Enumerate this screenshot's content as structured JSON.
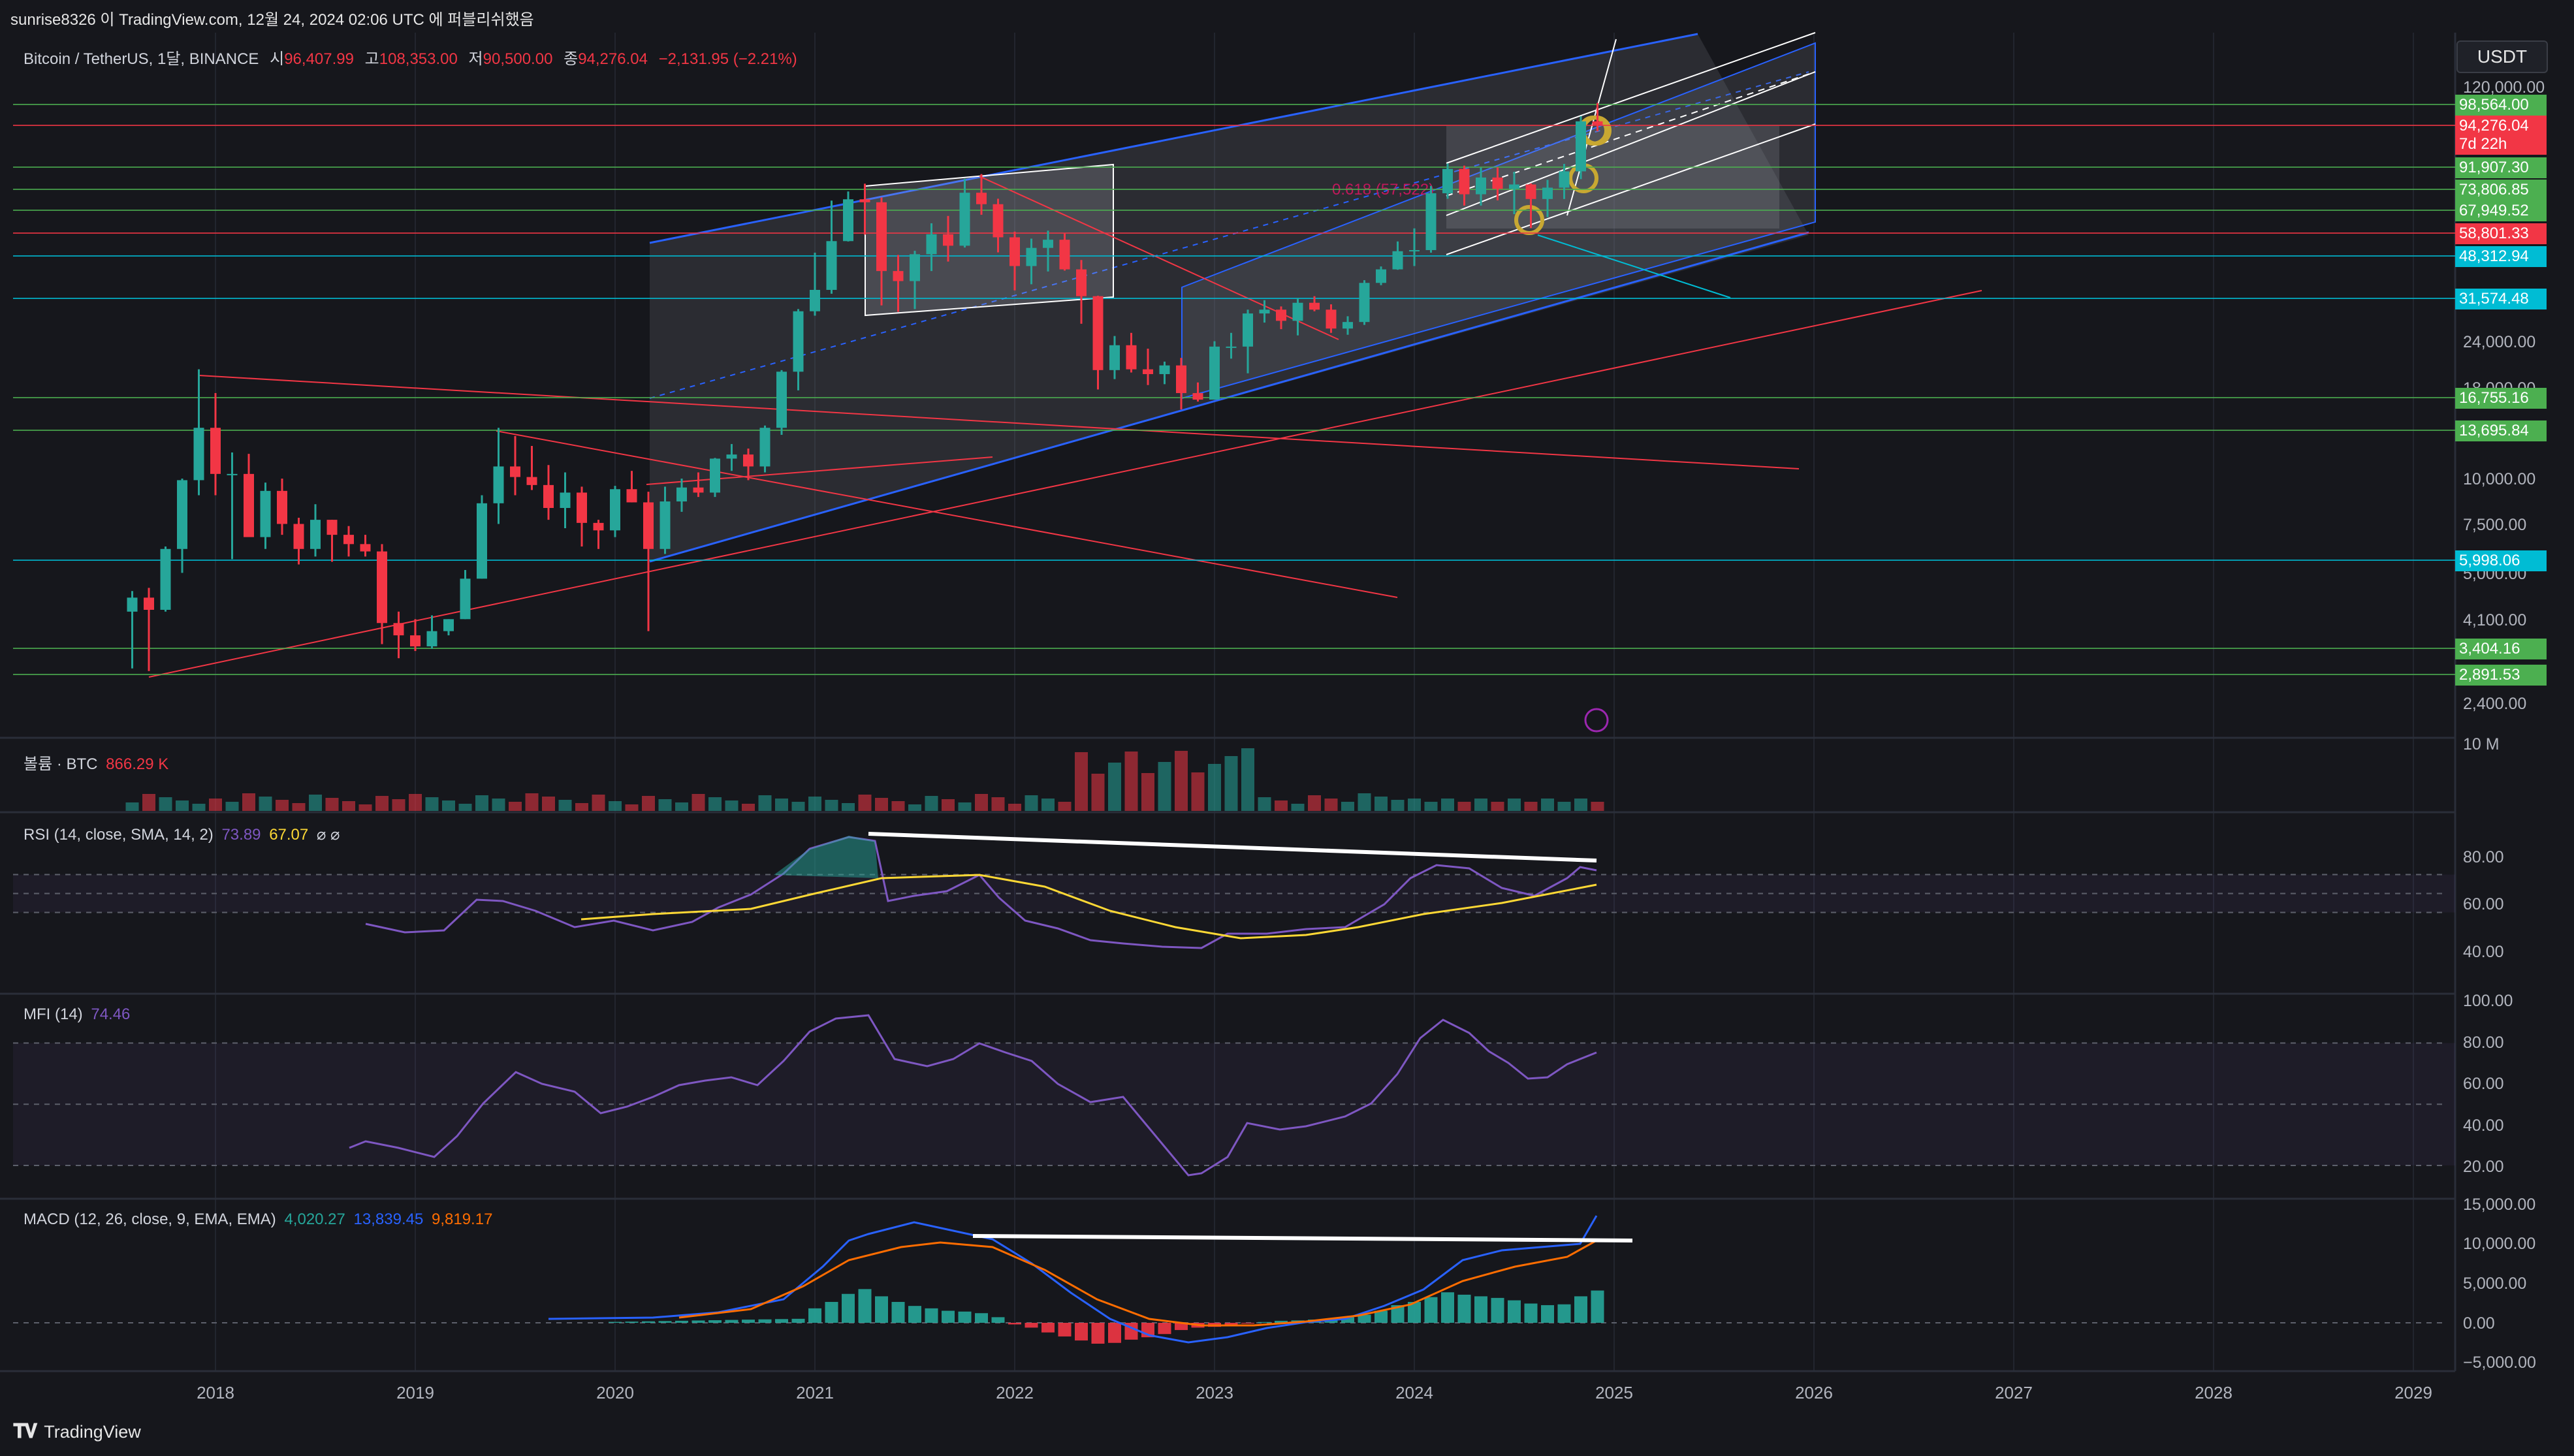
{
  "attribution": "sunrise8326 이 TradingView.com, 12월 24, 2024 02:06 UTC 에 퍼블리쉬했음",
  "brand": "TradingView",
  "currency": "USDT",
  "symbol_line": "Bitcoin / TetherUS, 1달, BINANCE",
  "ohlc": {
    "open_label": "시",
    "open": "96,407.99",
    "high_label": "고",
    "high": "108,353.00",
    "low_label": "저",
    "low": "90,500.00",
    "close_label": "종",
    "close": "94,276.04",
    "change": "−2,131.95 (−2.21%)"
  },
  "fib_label": "0.618 (57,522)",
  "colors": {
    "up": "#26a69a",
    "down": "#f23645",
    "bg": "#16171c",
    "green_tag": "#4caf50",
    "red_tag": "#f23645",
    "cyan_tag": "#00bcd4",
    "rsi": "#7e57c2",
    "rsi_ma": "#fdd835",
    "macd": "#2962ff",
    "signal": "#ff6d00"
  },
  "price_tags": [
    {
      "label": "98,564.00",
      "color": "#4caf50"
    },
    {
      "label": "94,276.04",
      "color": "#f23645"
    },
    {
      "label": "7d 22h",
      "color": "#f23645"
    },
    {
      "label": "91,907.30",
      "color": "#4caf50"
    },
    {
      "label": "73,806.85",
      "color": "#4caf50"
    },
    {
      "label": "67,949.52",
      "color": "#4caf50"
    },
    {
      "label": "58,801.33",
      "color": "#f23645"
    },
    {
      "label": "48,312.94",
      "color": "#00bcd4"
    },
    {
      "label": "31,574.48",
      "color": "#00bcd4"
    },
    {
      "label": "16,755.16",
      "color": "#4caf50"
    },
    {
      "label": "13,695.84",
      "color": "#4caf50"
    },
    {
      "label": "5,998.06",
      "color": "#00bcd4"
    },
    {
      "label": "3,404.16",
      "color": "#4caf50"
    },
    {
      "label": "2,891.53",
      "color": "#4caf50"
    }
  ],
  "volume": {
    "label": "볼륨 · BTC",
    "value": "866.29 K",
    "axis_label": "10 M"
  },
  "rsi": {
    "label": "RSI (14, close, SMA, 14, 2)",
    "value": "73.89",
    "ma_value": "67.07",
    "icons": "⌀ ⌀",
    "ticks": [
      "80.00",
      "60.00",
      "40.00"
    ]
  },
  "mfi": {
    "label": "MFI (14)",
    "value": "74.46",
    "ticks": [
      "100.00",
      "80.00",
      "60.00",
      "40.00",
      "20.00"
    ]
  },
  "macd": {
    "label": "MACD (12, 26, close, 9, EMA, EMA)",
    "hist": "4,020.27",
    "macd": "13,839.45",
    "signal": "9,819.17",
    "ticks": [
      "15,000.00",
      "10,000.00",
      "5,000.00",
      "0.00",
      "−5,000.00"
    ]
  },
  "chart_data": {
    "type": "candlestick",
    "interval": "1M",
    "scale": "log",
    "y_ticks": [
      "120,000.00",
      "24,000.00",
      "18,000.00",
      "10,000.00",
      "7,500.00",
      "5,000.00",
      "4,100.00",
      "2,400.00"
    ],
    "x_ticks": [
      "2018",
      "2019",
      "2020",
      "2021",
      "2022",
      "2023",
      "2024",
      "2025",
      "2026",
      "2027",
      "2028",
      "2029"
    ],
    "years": [
      {
        "year": 2017,
        "start_month": 8,
        "o": [
          4300,
          4700,
          4350,
          6400,
          9900
        ],
        "c": [
          4700,
          4350,
          6400,
          9900,
          13800
        ],
        "h": [
          4900,
          5000,
          6500,
          10000,
          20000
        ],
        "l": [
          3000,
          2950,
          4300,
          5500,
          9000
        ]
      },
      {
        "year": 2018,
        "o": [
          13800,
          10300,
          10300,
          6900,
          9250,
          7500,
          6400,
          7700,
          7000,
          6600,
          6300,
          4000
        ],
        "c": [
          10300,
          10300,
          6900,
          9250,
          7500,
          6400,
          7700,
          7000,
          6600,
          6300,
          4000,
          3700
        ],
        "h": [
          17200,
          11800,
          11700,
          9750,
          10000,
          7800,
          8500,
          7700,
          7400,
          7000,
          6600,
          4300
        ],
        "l": [
          9000,
          6000,
          7000,
          6400,
          7000,
          5800,
          6100,
          5900,
          6100,
          6100,
          3500,
          3200
        ]
      },
      {
        "year": 2019,
        "o": [
          3700,
          3450,
          3800,
          4100,
          5300,
          8550,
          10800,
          10100,
          9600,
          8300,
          9150,
          7550
        ],
        "c": [
          3450,
          3800,
          4100,
          5300,
          8550,
          10800,
          10100,
          9600,
          8300,
          9150,
          7550,
          7200
        ],
        "h": [
          4100,
          4200,
          4100,
          5600,
          9000,
          13800,
          13100,
          12300,
          10900,
          10400,
          9500,
          7700
        ],
        "l": [
          3350,
          3400,
          3700,
          4100,
          5300,
          7500,
          9000,
          9300,
          7700,
          7300,
          6500,
          6400
        ]
      },
      {
        "year": 2020,
        "o": [
          7200,
          9350,
          8600,
          6400,
          8650,
          9450,
          9150,
          11350,
          11650,
          10800,
          13800,
          19700
        ],
        "c": [
          9350,
          8600,
          6400,
          8650,
          9450,
          9150,
          11350,
          11650,
          10800,
          13800,
          19700,
          28900
        ],
        "h": [
          9550,
          10500,
          9200,
          9500,
          10000,
          10400,
          11400,
          12450,
          12100,
          14000,
          19900,
          29300
        ],
        "l": [
          6900,
          8600,
          3800,
          6200,
          8100,
          8900,
          8900,
          10500,
          9900,
          10400,
          13200,
          17500
        ]
      },
      {
        "year": 2021,
        "o": [
          28900,
          33100,
          45100,
          58800,
          57700,
          37300,
          35000,
          41500,
          47100,
          43800,
          61300,
          57000
        ],
        "c": [
          33100,
          45100,
          58800,
          57700,
          37300,
          35000,
          41500,
          47100,
          43800,
          61300,
          57000,
          46200
        ],
        "h": [
          41900,
          58300,
          61800,
          64900,
          59500,
          41300,
          42400,
          50500,
          52900,
          67000,
          69000,
          59000
        ],
        "l": [
          28100,
          32300,
          45000,
          47000,
          30000,
          28800,
          29300,
          37300,
          39600,
          43300,
          53300,
          42000
        ]
      },
      {
        "year": 2022,
        "o": [
          46200,
          38500,
          43200,
          45500,
          37700,
          31800,
          19900,
          23300,
          20000,
          19400,
          20500,
          17200
        ],
        "c": [
          38500,
          43200,
          45500,
          37700,
          31800,
          19900,
          23300,
          20000,
          19400,
          20500,
          17200,
          16500
        ],
        "h": [
          47900,
          45800,
          48200,
          47400,
          40000,
          31900,
          24700,
          25200,
          22800,
          21000,
          21500,
          18400
        ],
        "l": [
          33000,
          34300,
          37200,
          37400,
          26700,
          17600,
          18800,
          19600,
          18100,
          18200,
          15500,
          16300
        ]
      },
      {
        "year": 2023,
        "o": [
          16500,
          23100,
          23100,
          28500,
          29200,
          27200,
          30500,
          29200,
          25900,
          27000,
          34600,
          37700
        ],
        "c": [
          23100,
          23100,
          28500,
          29200,
          27200,
          30500,
          29200,
          25900,
          27000,
          34600,
          37700,
          42300
        ],
        "h": [
          23900,
          25200,
          29200,
          31000,
          29800,
          31400,
          31800,
          30200,
          28000,
          35200,
          38400,
          45000
        ],
        "l": [
          16500,
          21400,
          19500,
          26900,
          25800,
          24800,
          28900,
          25200,
          24900,
          26500,
          34100,
          37600
        ]
      },
      {
        "year": 2024,
        "o": [
          42300,
          42600,
          61100,
          71300,
          60700,
          67500,
          62800,
          64600,
          58900,
          63300,
          70200,
          96400
        ],
        "c": [
          42600,
          61100,
          71300,
          60700,
          67500,
          62800,
          64600,
          58900,
          63300,
          70200,
          96400,
          94276
        ],
        "h": [
          48900,
          64000,
          73800,
          72800,
          71900,
          72000,
          70000,
          65000,
          66500,
          73600,
          99600,
          108353
        ],
        "l": [
          38500,
          41900,
          59000,
          56500,
          56500,
          58400,
          53500,
          49000,
          52500,
          58900,
          66800,
          90500
        ]
      }
    ],
    "horizontal_levels": [
      98564,
      94276.04,
      91907.3,
      73806.85,
      67949.52,
      58801.33,
      48312.94,
      31574.48,
      16755.16,
      13695.84,
      5998.06,
      3404.16,
      2891.53
    ],
    "rsi_series_note": "monthly RSI(14) with SMA(14)",
    "rsi_last": 73.89,
    "rsi_ma_last": 67.07,
    "mfi_last": 74.46,
    "macd_last": {
      "histogram": 4020.27,
      "macd": 13839.45,
      "signal": 9819.17
    }
  }
}
